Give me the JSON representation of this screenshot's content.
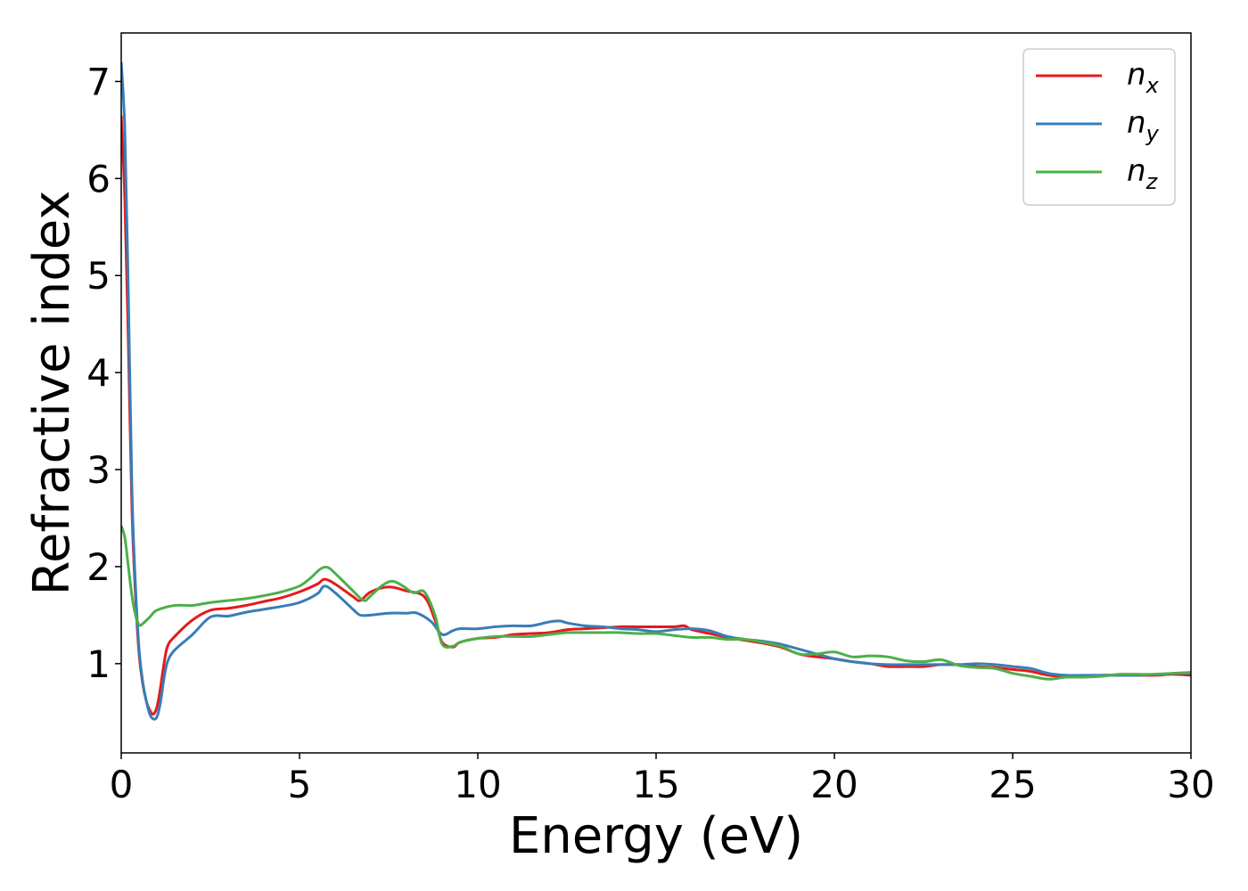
{
  "chart_data": {
    "type": "line",
    "xlabel": "Energy (eV)",
    "ylabel": "Refractive index",
    "xlim": [
      0,
      30
    ],
    "ylim": [
      0.08,
      7.5
    ],
    "xticks": [
      0,
      5,
      10,
      15,
      20,
      25,
      30
    ],
    "xtick_labels": [
      "0",
      "5",
      "10",
      "15",
      "20",
      "25",
      "30"
    ],
    "yticks": [
      1,
      2,
      3,
      4,
      5,
      6,
      7
    ],
    "ytick_labels": [
      "1",
      "2",
      "3",
      "4",
      "5",
      "6",
      "7"
    ],
    "grid": false,
    "legend_position": "top-right",
    "series": [
      {
        "name": "n_x",
        "legend": {
          "base": "n",
          "sub": "x"
        },
        "color": "#e41a1c",
        "x": [
          0,
          0.1,
          0.2,
          0.3,
          0.4,
          0.5,
          0.6,
          0.7,
          0.8,
          0.9,
          1.0,
          1.1,
          1.2,
          1.3,
          1.5,
          2.0,
          2.5,
          3.0,
          3.5,
          4.0,
          4.5,
          5.0,
          5.5,
          5.7,
          6.0,
          6.5,
          6.7,
          7.0,
          7.5,
          8.0,
          8.5,
          8.8,
          9.0,
          9.3,
          9.5,
          10.0,
          10.5,
          11.0,
          11.5,
          12.0,
          12.5,
          13.0,
          13.5,
          14.0,
          14.5,
          15.0,
          15.5,
          15.8,
          16.0,
          16.5,
          17.0,
          17.5,
          18.0,
          18.5,
          19.0,
          19.5,
          20.0,
          20.5,
          21.0,
          21.5,
          22.0,
          22.5,
          23.0,
          23.5,
          24.0,
          24.5,
          25.0,
          25.5,
          26.0,
          26.5,
          27.0,
          27.5,
          28.0,
          28.5,
          29.0,
          29.5,
          30.0
        ],
        "y": [
          6.65,
          5.8,
          4.3,
          2.6,
          1.7,
          1.1,
          0.8,
          0.62,
          0.52,
          0.48,
          0.55,
          0.75,
          1.0,
          1.18,
          1.28,
          1.45,
          1.55,
          1.57,
          1.6,
          1.64,
          1.68,
          1.74,
          1.82,
          1.87,
          1.82,
          1.69,
          1.65,
          1.74,
          1.79,
          1.75,
          1.69,
          1.45,
          1.22,
          1.17,
          1.22,
          1.26,
          1.27,
          1.3,
          1.31,
          1.32,
          1.35,
          1.36,
          1.37,
          1.38,
          1.38,
          1.38,
          1.38,
          1.39,
          1.35,
          1.31,
          1.27,
          1.24,
          1.21,
          1.17,
          1.1,
          1.07,
          1.05,
          1.02,
          1.0,
          0.97,
          0.97,
          0.97,
          0.99,
          0.99,
          0.97,
          0.96,
          0.94,
          0.92,
          0.88,
          0.87,
          0.87,
          0.88,
          0.88,
          0.88,
          0.88,
          0.89,
          0.88
        ]
      },
      {
        "name": "n_y",
        "legend": {
          "base": "n",
          "sub": "y"
        },
        "color": "#377eb8",
        "x": [
          0,
          0.1,
          0.2,
          0.3,
          0.4,
          0.5,
          0.6,
          0.7,
          0.8,
          0.9,
          1.0,
          1.1,
          1.2,
          1.3,
          1.5,
          2.0,
          2.5,
          3.0,
          3.5,
          4.0,
          4.5,
          5.0,
          5.5,
          5.7,
          6.0,
          6.5,
          6.7,
          7.0,
          7.5,
          8.0,
          8.3,
          8.7,
          9.0,
          9.3,
          9.5,
          10.0,
          10.5,
          11.0,
          11.5,
          12.0,
          12.3,
          12.5,
          13.0,
          13.5,
          14.0,
          14.5,
          15.0,
          15.5,
          16.0,
          16.5,
          17.0,
          17.5,
          18.0,
          18.5,
          19.0,
          19.5,
          20.0,
          20.5,
          21.0,
          21.5,
          22.0,
          22.5,
          23.0,
          23.5,
          24.0,
          24.5,
          25.0,
          25.5,
          26.0,
          26.5,
          27.0,
          27.5,
          28.0,
          28.5,
          29.0,
          29.5,
          30.0
        ],
        "y": [
          7.2,
          6.5,
          4.8,
          2.8,
          1.8,
          1.15,
          0.82,
          0.62,
          0.48,
          0.43,
          0.45,
          0.6,
          0.85,
          1.02,
          1.14,
          1.3,
          1.48,
          1.49,
          1.53,
          1.56,
          1.59,
          1.63,
          1.72,
          1.8,
          1.73,
          1.56,
          1.5,
          1.5,
          1.52,
          1.52,
          1.52,
          1.43,
          1.3,
          1.34,
          1.36,
          1.36,
          1.38,
          1.39,
          1.39,
          1.43,
          1.44,
          1.42,
          1.39,
          1.38,
          1.36,
          1.35,
          1.33,
          1.35,
          1.36,
          1.34,
          1.28,
          1.25,
          1.23,
          1.2,
          1.15,
          1.1,
          1.05,
          1.02,
          1.0,
          0.99,
          0.99,
          0.99,
          0.99,
          0.99,
          1.0,
          0.99,
          0.97,
          0.95,
          0.9,
          0.88,
          0.88,
          0.88,
          0.88,
          0.88,
          0.89,
          0.9,
          0.9
        ]
      },
      {
        "name": "n_z",
        "legend": {
          "base": "n",
          "sub": "z"
        },
        "color": "#4daf4a",
        "x": [
          0,
          0.1,
          0.2,
          0.3,
          0.4,
          0.5,
          0.6,
          0.8,
          1.0,
          1.5,
          2.0,
          2.5,
          3.0,
          3.5,
          4.0,
          4.5,
          5.0,
          5.3,
          5.6,
          5.8,
          6.0,
          6.5,
          6.8,
          7.0,
          7.3,
          7.6,
          7.9,
          8.2,
          8.5,
          8.8,
          9.0,
          9.3,
          9.5,
          10.0,
          10.5,
          11.0,
          11.5,
          12.0,
          12.5,
          13.0,
          13.5,
          14.0,
          14.5,
          15.0,
          15.5,
          16.0,
          16.5,
          17.0,
          17.5,
          18.0,
          18.5,
          19.0,
          19.5,
          20.0,
          20.5,
          21.0,
          21.5,
          22.0,
          22.5,
          23.0,
          23.5,
          24.0,
          24.5,
          25.0,
          25.5,
          26.0,
          26.5,
          27.0,
          27.5,
          28.0,
          28.5,
          29.0,
          29.5,
          30.0
        ],
        "y": [
          2.42,
          2.3,
          2.0,
          1.7,
          1.5,
          1.4,
          1.41,
          1.48,
          1.55,
          1.6,
          1.6,
          1.63,
          1.65,
          1.67,
          1.7,
          1.74,
          1.8,
          1.88,
          1.98,
          1.99,
          1.93,
          1.75,
          1.65,
          1.7,
          1.8,
          1.85,
          1.8,
          1.73,
          1.74,
          1.5,
          1.2,
          1.18,
          1.22,
          1.26,
          1.28,
          1.28,
          1.28,
          1.3,
          1.32,
          1.32,
          1.32,
          1.32,
          1.31,
          1.31,
          1.29,
          1.27,
          1.27,
          1.25,
          1.25,
          1.22,
          1.18,
          1.1,
          1.1,
          1.12,
          1.07,
          1.08,
          1.07,
          1.03,
          1.02,
          1.04,
          0.98,
          0.96,
          0.95,
          0.9,
          0.87,
          0.84,
          0.86,
          0.86,
          0.87,
          0.89,
          0.89,
          0.89,
          0.9,
          0.91
        ]
      }
    ]
  }
}
